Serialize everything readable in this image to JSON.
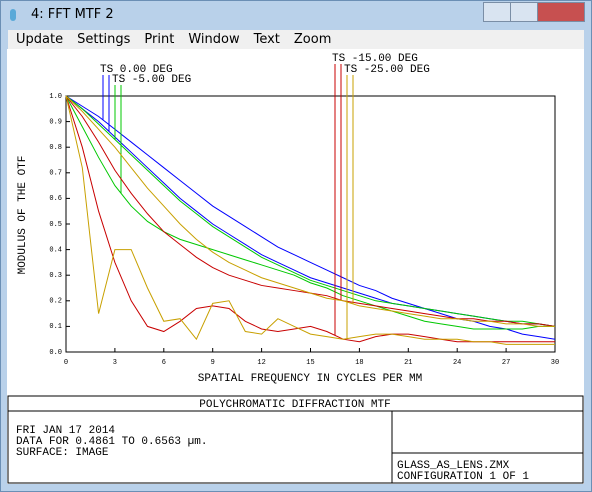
{
  "window": {
    "title": "4: FFT MTF 2"
  },
  "menu": [
    "Update",
    "Settings",
    "Print",
    "Window",
    "Text",
    "Zoom"
  ],
  "chart_data": {
    "type": "line",
    "x_label": "SPATIAL FREQUENCY IN CYCLES PER MM",
    "y_label": "MODULUS OF THE OTF",
    "x": [
      0,
      1,
      2,
      3,
      4,
      5,
      6,
      7,
      8,
      9,
      10,
      11,
      12,
      13,
      14,
      15,
      16,
      17,
      18,
      19,
      20,
      21,
      22,
      23,
      24,
      25,
      26,
      27,
      28,
      29,
      30
    ],
    "xlim": [
      0,
      30
    ],
    "xticks": [
      0,
      3,
      6,
      9,
      12,
      15,
      18,
      21,
      24,
      27,
      30
    ],
    "ylim": [
      0,
      1
    ],
    "yticks": [
      {
        "value": 0,
        "label": "0.0"
      },
      0.1,
      0.2,
      0.3,
      0.4,
      0.5,
      0.6,
      0.7,
      0.8,
      0.9,
      {
        "value": 1,
        "label": "1.0"
      }
    ],
    "grid": false,
    "series": [
      {
        "name": "TS 0.00 DEG",
        "color": "#0000ff",
        "t_values": [
          1,
          0.96,
          0.92,
          0.87,
          0.82,
          0.77,
          0.72,
          0.67,
          0.62,
          0.57,
          0.53,
          0.49,
          0.45,
          0.41,
          0.38,
          0.35,
          0.32,
          0.29,
          0.26,
          0.24,
          0.21,
          0.19,
          0.17,
          0.15,
          0.13,
          0.12,
          0.1,
          0.09,
          0.07,
          0.06,
          0.05
        ],
        "s_values": [
          1,
          0.95,
          0.9,
          0.84,
          0.78,
          0.72,
          0.66,
          0.6,
          0.55,
          0.5,
          0.46,
          0.42,
          0.38,
          0.35,
          0.32,
          0.29,
          0.27,
          0.25,
          0.23,
          0.21,
          0.19,
          0.18,
          0.17,
          0.16,
          0.15,
          0.14,
          0.13,
          0.12,
          0.11,
          0.11,
          0.1
        ]
      },
      {
        "name": "TS -5.00 DEG",
        "color": "#00c800",
        "t_values": [
          1,
          0.95,
          0.89,
          0.83,
          0.77,
          0.71,
          0.65,
          0.59,
          0.54,
          0.49,
          0.45,
          0.41,
          0.37,
          0.34,
          0.31,
          0.28,
          0.26,
          0.24,
          0.22,
          0.2,
          0.19,
          0.18,
          0.17,
          0.16,
          0.15,
          0.14,
          0.13,
          0.12,
          0.12,
          0.11,
          0.1
        ],
        "s_values": [
          1,
          0.88,
          0.76,
          0.65,
          0.57,
          0.51,
          0.47,
          0.44,
          0.42,
          0.4,
          0.38,
          0.36,
          0.34,
          0.32,
          0.3,
          0.27,
          0.25,
          0.22,
          0.2,
          0.18,
          0.16,
          0.14,
          0.12,
          0.11,
          0.1,
          0.09,
          0.09,
          0.09,
          0.09,
          0.1,
          0.1
        ]
      },
      {
        "name": "TS -15.00 DEG",
        "color": "#c80000",
        "t_values": [
          1,
          0.8,
          0.55,
          0.35,
          0.2,
          0.1,
          0.08,
          0.12,
          0.17,
          0.18,
          0.17,
          0.12,
          0.09,
          0.08,
          0.09,
          0.1,
          0.08,
          0.05,
          0.04,
          0.06,
          0.07,
          0.07,
          0.06,
          0.05,
          0.04,
          0.04,
          0.04,
          0.04,
          0.04,
          0.04,
          0.04
        ],
        "s_values": [
          1,
          0.92,
          0.82,
          0.71,
          0.62,
          0.54,
          0.47,
          0.42,
          0.37,
          0.33,
          0.3,
          0.28,
          0.26,
          0.25,
          0.24,
          0.23,
          0.22,
          0.2,
          0.19,
          0.18,
          0.17,
          0.16,
          0.15,
          0.14,
          0.13,
          0.13,
          0.12,
          0.12,
          0.11,
          0.11,
          0.1
        ]
      },
      {
        "name": "TS -25.00 DEG",
        "color": "#c8a000",
        "t_values": [
          1,
          0.72,
          0.15,
          0.4,
          0.4,
          0.25,
          0.12,
          0.13,
          0.05,
          0.19,
          0.2,
          0.08,
          0.07,
          0.13,
          0.1,
          0.07,
          0.06,
          0.05,
          0.06,
          0.07,
          0.07,
          0.06,
          0.05,
          0.05,
          0.05,
          0.04,
          0.04,
          0.03,
          0.03,
          0.03,
          0.03
        ],
        "s_values": [
          1,
          0.94,
          0.87,
          0.8,
          0.72,
          0.64,
          0.57,
          0.5,
          0.44,
          0.39,
          0.35,
          0.32,
          0.29,
          0.27,
          0.25,
          0.23,
          0.21,
          0.2,
          0.18,
          0.17,
          0.16,
          0.15,
          0.14,
          0.13,
          0.13,
          0.12,
          0.12,
          0.11,
          0.11,
          0.1,
          0.1
        ]
      }
    ]
  },
  "footer": {
    "title": "POLYCHROMATIC DIFFRACTION MTF",
    "lines": [
      "FRI JAN 17 2014",
      "DATA FOR 0.4861 TO 0.6563 µm.",
      "SURFACE: IMAGE"
    ],
    "file": "GLASS_AS_LENS.ZMX",
    "config": "CONFIGURATION 1 OF 1"
  }
}
